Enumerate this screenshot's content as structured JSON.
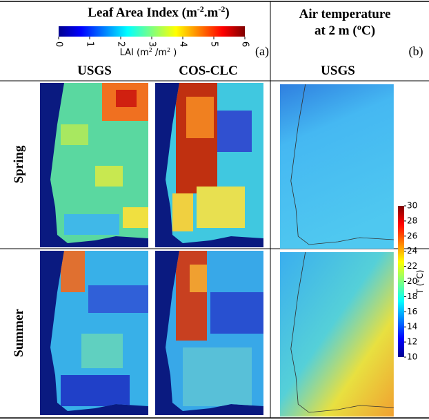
{
  "panel_a": {
    "title_parts": [
      "Leaf Area Index (m",
      "-2",
      ".m",
      "-2",
      ")"
    ],
    "colorbar": {
      "ticks": [
        0,
        1,
        2,
        3,
        4,
        5,
        6
      ],
      "label_parts": [
        "LAI (m",
        "2",
        " /m",
        "2",
        " )"
      ]
    },
    "label": "(a)",
    "columns": [
      "USGS",
      "COS-CLC"
    ]
  },
  "panel_b": {
    "title_lines": [
      "Air temperature",
      "at 2 m (ºC)"
    ],
    "label": "(b)",
    "column": "USGS",
    "colorbar": {
      "ticks": [
        10,
        12,
        14,
        16,
        18,
        20,
        22,
        24,
        26,
        28,
        30
      ],
      "label": "T (°C)"
    }
  },
  "rows": [
    "Spring",
    "Summer"
  ]
}
